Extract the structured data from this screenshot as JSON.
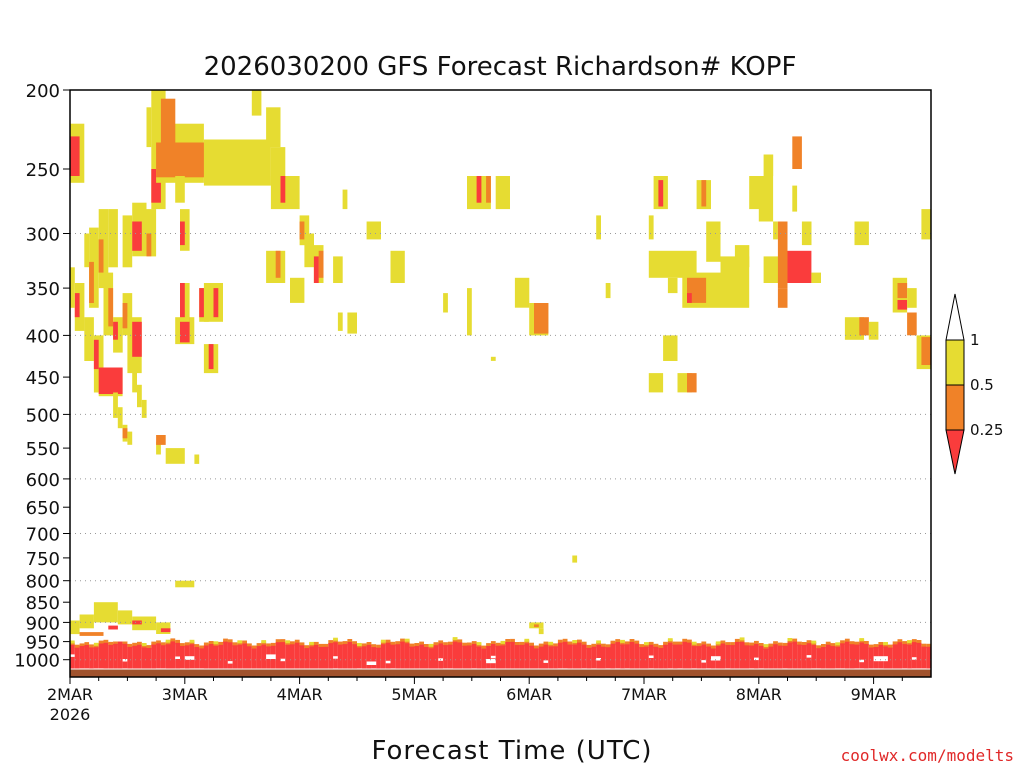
{
  "chart_data": {
    "type": "heatmap",
    "title": "2026030200 GFS Forecast Richardson# KOPF",
    "xlabel": "Forecast Time (UTC)",
    "ylabel": "",
    "credit": "coolwx.com/modelts",
    "x_unit": "hours since 2026-03-02 00Z",
    "xlim": [
      0,
      180
    ],
    "x_ticks": [
      {
        "hour": 0,
        "label": "2MAR",
        "sublabel": "2026"
      },
      {
        "hour": 24,
        "label": "3MAR"
      },
      {
        "hour": 48,
        "label": "4MAR"
      },
      {
        "hour": 72,
        "label": "5MAR"
      },
      {
        "hour": 96,
        "label": "6MAR"
      },
      {
        "hour": 120,
        "label": "7MAR"
      },
      {
        "hour": 144,
        "label": "8MAR"
      },
      {
        "hour": 168,
        "label": "9MAR"
      }
    ],
    "y_unit": "hPa",
    "ylim": [
      1050,
      200
    ],
    "y_ticks": [
      "200",
      "250",
      "300",
      "350",
      "400",
      "450",
      "500",
      "550",
      "600",
      "650",
      "700",
      "750",
      "800",
      "850",
      "900",
      "950",
      "1000"
    ],
    "gridlines_hPa": [
      300,
      400,
      500,
      600,
      700,
      800,
      900,
      1000
    ],
    "legend": {
      "position": "right",
      "thresholds": [
        "1",
        "0.5",
        "0.25"
      ],
      "bins": [
        {
          "range": "> 1",
          "color": "#ffffff"
        },
        {
          "range": "0.5 - 1",
          "color": "#e6dc32"
        },
        {
          "range": "0.25 - 0.5",
          "color": "#f08228"
        },
        {
          "range": "< 0.25",
          "color": "#fa3c3c"
        }
      ]
    },
    "colors": {
      "yellow": "#e6dc32",
      "orange": "#f08228",
      "red": "#fa3c3c",
      "ground": "#a0522d"
    },
    "cells": [
      {
        "t0": 0,
        "t1": 3,
        "p0": 220,
        "p1": 260,
        "c": "y"
      },
      {
        "t0": 0,
        "t1": 2,
        "p0": 228,
        "p1": 255,
        "c": "r"
      },
      {
        "t0": 3,
        "t1": 4,
        "p0": 300,
        "p1": 330,
        "c": "y"
      },
      {
        "t0": 4,
        "t1": 6,
        "p0": 295,
        "p1": 370,
        "c": "y"
      },
      {
        "t0": 4,
        "t1": 5,
        "p0": 325,
        "p1": 365,
        "c": "o"
      },
      {
        "t0": 6,
        "t1": 8,
        "p0": 280,
        "p1": 350,
        "c": "y"
      },
      {
        "t0": 6,
        "t1": 7,
        "p0": 305,
        "p1": 335,
        "c": "o"
      },
      {
        "t0": 1,
        "t1": 3,
        "p0": 345,
        "p1": 395,
        "c": "y"
      },
      {
        "t0": 1,
        "t1": 2,
        "p0": 355,
        "p1": 380,
        "c": "r"
      },
      {
        "t0": 0,
        "t1": 1,
        "p0": 330,
        "p1": 370,
        "c": "y"
      },
      {
        "t0": 3,
        "t1": 5,
        "p0": 380,
        "p1": 430,
        "c": "y"
      },
      {
        "t0": 5,
        "t1": 7,
        "p0": 400,
        "p1": 470,
        "c": "y"
      },
      {
        "t0": 5,
        "t1": 6,
        "p0": 405,
        "p1": 440,
        "c": "r"
      },
      {
        "t0": 6,
        "t1": 11,
        "p0": 438,
        "p1": 475,
        "c": "y"
      },
      {
        "t0": 6,
        "t1": 11,
        "p0": 438,
        "p1": 472,
        "c": "r"
      },
      {
        "t0": 8,
        "t1": 10,
        "p0": 280,
        "p1": 330,
        "c": "y"
      },
      {
        "t0": 7,
        "t1": 9,
        "p0": 335,
        "p1": 400,
        "c": "y"
      },
      {
        "t0": 8,
        "t1": 9,
        "p0": 350,
        "p1": 390,
        "c": "o"
      },
      {
        "t0": 9,
        "t1": 11,
        "p0": 380,
        "p1": 420,
        "c": "y"
      },
      {
        "t0": 9,
        "t1": 10,
        "p0": 385,
        "p1": 405,
        "c": "r"
      },
      {
        "t0": 11,
        "t1": 13,
        "p0": 285,
        "p1": 330,
        "c": "y"
      },
      {
        "t0": 11,
        "t1": 13,
        "p0": 355,
        "p1": 400,
        "c": "y"
      },
      {
        "t0": 11,
        "t1": 12,
        "p0": 365,
        "p1": 392,
        "c": "o"
      },
      {
        "t0": 12,
        "t1": 15,
        "p0": 380,
        "p1": 445,
        "c": "y"
      },
      {
        "t0": 13,
        "t1": 15,
        "p0": 385,
        "p1": 425,
        "c": "r"
      },
      {
        "t0": 13,
        "t1": 14,
        "p0": 440,
        "p1": 470,
        "c": "y"
      },
      {
        "t0": 14,
        "t1": 15,
        "p0": 460,
        "p1": 490,
        "c": "y"
      },
      {
        "t0": 9,
        "t1": 10,
        "p0": 470,
        "p1": 505,
        "c": "y"
      },
      {
        "t0": 10,
        "t1": 11,
        "p0": 490,
        "p1": 520,
        "c": "y"
      },
      {
        "t0": 11,
        "t1": 12,
        "p0": 515,
        "p1": 540,
        "c": "y"
      },
      {
        "t0": 11,
        "t1": 12,
        "p0": 520,
        "p1": 535,
        "c": "o"
      },
      {
        "t0": 12,
        "t1": 13,
        "p0": 525,
        "p1": 545,
        "c": "y"
      },
      {
        "t0": 15,
        "t1": 16,
        "p0": 480,
        "p1": 505,
        "c": "y"
      },
      {
        "t0": 13,
        "t1": 16,
        "p0": 275,
        "p1": 320,
        "c": "y"
      },
      {
        "t0": 13,
        "t1": 15,
        "p0": 290,
        "p1": 315,
        "c": "r"
      },
      {
        "t0": 16,
        "t1": 18,
        "p0": 280,
        "p1": 320,
        "c": "y"
      },
      {
        "t0": 16,
        "t1": 17,
        "p0": 300,
        "p1": 320,
        "c": "o"
      },
      {
        "t0": 16,
        "t1": 17,
        "p0": 210,
        "p1": 235,
        "c": "y"
      },
      {
        "t0": 17,
        "t1": 20,
        "p0": 200,
        "p1": 280,
        "c": "y"
      },
      {
        "t0": 17,
        "t1": 19,
        "p0": 250,
        "p1": 275,
        "c": "r"
      },
      {
        "t0": 18,
        "t1": 28,
        "p0": 220,
        "p1": 260,
        "c": "y"
      },
      {
        "t0": 19,
        "t1": 22,
        "p0": 205,
        "p1": 240,
        "c": "o"
      },
      {
        "t0": 18,
        "t1": 29,
        "p0": 232,
        "p1": 256,
        "c": "o"
      },
      {
        "t0": 22,
        "t1": 24,
        "p0": 255,
        "p1": 275,
        "c": "y"
      },
      {
        "t0": 23,
        "t1": 25,
        "p0": 280,
        "p1": 315,
        "c": "y"
      },
      {
        "t0": 23,
        "t1": 24,
        "p0": 290,
        "p1": 310,
        "c": "r"
      },
      {
        "t0": 18,
        "t1": 19,
        "p0": 540,
        "p1": 560,
        "c": "y"
      },
      {
        "t0": 18,
        "t1": 20,
        "p0": 530,
        "p1": 545,
        "c": "o"
      },
      {
        "t0": 20,
        "t1": 24,
        "p0": 550,
        "p1": 575,
        "c": "y"
      },
      {
        "t0": 26,
        "t1": 27,
        "p0": 560,
        "p1": 575,
        "c": "y"
      },
      {
        "t0": 22,
        "t1": 26,
        "p0": 380,
        "p1": 410,
        "c": "y"
      },
      {
        "t0": 23,
        "t1": 25,
        "p0": 380,
        "p1": 408,
        "c": "r"
      },
      {
        "t0": 23,
        "t1": 25,
        "p0": 345,
        "p1": 385,
        "c": "y"
      },
      {
        "t0": 23,
        "t1": 24,
        "p0": 345,
        "p1": 380,
        "c": "r"
      },
      {
        "t0": 27,
        "t1": 29,
        "p0": 350,
        "p1": 385,
        "c": "y"
      },
      {
        "t0": 27,
        "t1": 28,
        "p0": 350,
        "p1": 380,
        "c": "r"
      },
      {
        "t0": 28,
        "t1": 32,
        "p0": 345,
        "p1": 385,
        "c": "y"
      },
      {
        "t0": 30,
        "t1": 31,
        "p0": 350,
        "p1": 380,
        "c": "r"
      },
      {
        "t0": 28,
        "t1": 31,
        "p0": 410,
        "p1": 445,
        "c": "y"
      },
      {
        "t0": 29,
        "t1": 30,
        "p0": 410,
        "p1": 440,
        "c": "r"
      },
      {
        "t0": 28,
        "t1": 42,
        "p0": 230,
        "p1": 262,
        "c": "y"
      },
      {
        "t0": 41,
        "t1": 44,
        "p0": 210,
        "p1": 235,
        "c": "y"
      },
      {
        "t0": 38,
        "t1": 40,
        "p0": 200,
        "p1": 215,
        "c": "y"
      },
      {
        "t0": 42,
        "t1": 45,
        "p0": 235,
        "p1": 262,
        "c": "y"
      },
      {
        "t0": 42,
        "t1": 48,
        "p0": 255,
        "p1": 280,
        "c": "y"
      },
      {
        "t0": 44,
        "t1": 45,
        "p0": 255,
        "p1": 275,
        "c": "r"
      },
      {
        "t0": 48,
        "t1": 50,
        "p0": 285,
        "p1": 310,
        "c": "y"
      },
      {
        "t0": 48,
        "t1": 49,
        "p0": 290,
        "p1": 305,
        "c": "o"
      },
      {
        "t0": 41,
        "t1": 45,
        "p0": 315,
        "p1": 345,
        "c": "y"
      },
      {
        "t0": 43,
        "t1": 44,
        "p0": 315,
        "p1": 340,
        "c": "o"
      },
      {
        "t0": 46,
        "t1": 49,
        "p0": 340,
        "p1": 365,
        "c": "y"
      },
      {
        "t0": 49,
        "t1": 51,
        "p0": 300,
        "p1": 330,
        "c": "y"
      },
      {
        "t0": 51,
        "t1": 53,
        "p0": 310,
        "p1": 345,
        "c": "y"
      },
      {
        "t0": 52,
        "t1": 53,
        "p0": 315,
        "p1": 340,
        "c": "o"
      },
      {
        "t0": 51,
        "t1": 52,
        "p0": 320,
        "p1": 345,
        "c": "r"
      },
      {
        "t0": 55,
        "t1": 57,
        "p0": 320,
        "p1": 345,
        "c": "y"
      },
      {
        "t0": 57,
        "t1": 58,
        "p0": 265,
        "p1": 280,
        "c": "y"
      },
      {
        "t0": 56,
        "t1": 57,
        "p0": 375,
        "p1": 395,
        "c": "y"
      },
      {
        "t0": 58,
        "t1": 60,
        "p0": 375,
        "p1": 398,
        "c": "y"
      },
      {
        "t0": 62,
        "t1": 65,
        "p0": 290,
        "p1": 305,
        "c": "y"
      },
      {
        "t0": 67,
        "t1": 70,
        "p0": 315,
        "p1": 345,
        "c": "y"
      },
      {
        "t0": 78,
        "t1": 79,
        "p0": 355,
        "p1": 375,
        "c": "y"
      },
      {
        "t0": 83,
        "t1": 84,
        "p0": 350,
        "p1": 400,
        "c": "y"
      },
      {
        "t0": 83,
        "t1": 88,
        "p0": 255,
        "p1": 280,
        "c": "y"
      },
      {
        "t0": 85,
        "t1": 86,
        "p0": 255,
        "p1": 275,
        "c": "r"
      },
      {
        "t0": 87,
        "t1": 88,
        "p0": 255,
        "p1": 275,
        "c": "o"
      },
      {
        "t0": 89,
        "t1": 92,
        "p0": 255,
        "p1": 280,
        "c": "y"
      },
      {
        "t0": 93,
        "t1": 96,
        "p0": 340,
        "p1": 370,
        "c": "y"
      },
      {
        "t0": 96,
        "t1": 100,
        "p0": 365,
        "p1": 400,
        "c": "y"
      },
      {
        "t0": 97,
        "t1": 100,
        "p0": 365,
        "p1": 398,
        "c": "o"
      },
      {
        "t0": 88,
        "t1": 89,
        "p0": 425,
        "p1": 430,
        "c": "y"
      },
      {
        "t0": 110,
        "t1": 111,
        "p0": 285,
        "p1": 305,
        "c": "y"
      },
      {
        "t0": 112,
        "t1": 113,
        "p0": 345,
        "p1": 360,
        "c": "y"
      },
      {
        "t0": 121,
        "t1": 122,
        "p0": 285,
        "p1": 305,
        "c": "y"
      },
      {
        "t0": 122,
        "t1": 125,
        "p0": 255,
        "p1": 280,
        "c": "y"
      },
      {
        "t0": 123,
        "t1": 124,
        "p0": 258,
        "p1": 278,
        "c": "r"
      },
      {
        "t0": 121,
        "t1": 131,
        "p0": 315,
        "p1": 340,
        "c": "y"
      },
      {
        "t0": 125,
        "t1": 127,
        "p0": 340,
        "p1": 355,
        "c": "y"
      },
      {
        "t0": 128,
        "t1": 136,
        "p0": 335,
        "p1": 370,
        "c": "y"
      },
      {
        "t0": 129,
        "t1": 133,
        "p0": 340,
        "p1": 365,
        "c": "o"
      },
      {
        "t0": 129,
        "t1": 130,
        "p0": 355,
        "p1": 365,
        "c": "r"
      },
      {
        "t0": 136,
        "t1": 142,
        "p0": 320,
        "p1": 370,
        "c": "y"
      },
      {
        "t0": 139,
        "t1": 142,
        "p0": 310,
        "p1": 330,
        "c": "y"
      },
      {
        "t0": 131,
        "t1": 134,
        "p0": 258,
        "p1": 280,
        "c": "y"
      },
      {
        "t0": 132,
        "t1": 133,
        "p0": 258,
        "p1": 278,
        "c": "o"
      },
      {
        "t0": 133,
        "t1": 136,
        "p0": 290,
        "p1": 325,
        "c": "y"
      },
      {
        "t0": 142,
        "t1": 145,
        "p0": 255,
        "p1": 280,
        "c": "y"
      },
      {
        "t0": 144,
        "t1": 147,
        "p0": 255,
        "p1": 290,
        "c": "y"
      },
      {
        "t0": 145,
        "t1": 147,
        "p0": 240,
        "p1": 255,
        "c": "y"
      },
      {
        "t0": 147,
        "t1": 148,
        "p0": 290,
        "p1": 305,
        "c": "y"
      },
      {
        "t0": 145,
        "t1": 151,
        "p0": 320,
        "p1": 345,
        "c": "y"
      },
      {
        "t0": 148,
        "t1": 150,
        "p0": 290,
        "p1": 350,
        "c": "o"
      },
      {
        "t0": 148,
        "t1": 150,
        "p0": 350,
        "p1": 370,
        "c": "o"
      },
      {
        "t0": 150,
        "t1": 155,
        "p0": 315,
        "p1": 345,
        "c": "r"
      },
      {
        "t0": 151,
        "t1": 152,
        "p0": 262,
        "p1": 282,
        "c": "y"
      },
      {
        "t0": 151,
        "t1": 153,
        "p0": 228,
        "p1": 250,
        "c": "o"
      },
      {
        "t0": 153,
        "t1": 155,
        "p0": 290,
        "p1": 310,
        "c": "y"
      },
      {
        "t0": 155,
        "t1": 157,
        "p0": 335,
        "p1": 345,
        "c": "y"
      },
      {
        "t0": 164,
        "t1": 167,
        "p0": 290,
        "p1": 310,
        "c": "y"
      },
      {
        "t0": 162,
        "t1": 166,
        "p0": 380,
        "p1": 405,
        "c": "y"
      },
      {
        "t0": 165,
        "t1": 167,
        "p0": 380,
        "p1": 400,
        "c": "o"
      },
      {
        "t0": 167,
        "t1": 169,
        "p0": 385,
        "p1": 405,
        "c": "y"
      },
      {
        "t0": 172,
        "t1": 175,
        "p0": 340,
        "p1": 375,
        "c": "y"
      },
      {
        "t0": 173,
        "t1": 175,
        "p0": 345,
        "p1": 360,
        "c": "o"
      },
      {
        "t0": 173,
        "t1": 175,
        "p0": 362,
        "p1": 372,
        "c": "r"
      },
      {
        "t0": 175,
        "t1": 177,
        "p0": 350,
        "p1": 370,
        "c": "y"
      },
      {
        "t0": 175,
        "t1": 177,
        "p0": 375,
        "p1": 400,
        "c": "o"
      },
      {
        "t0": 178,
        "t1": 180,
        "p0": 280,
        "p1": 305,
        "c": "y"
      },
      {
        "t0": 177,
        "t1": 180,
        "p0": 400,
        "p1": 440,
        "c": "y"
      },
      {
        "t0": 178,
        "t1": 180,
        "p0": 402,
        "p1": 435,
        "c": "o"
      },
      {
        "t0": 124,
        "t1": 127,
        "p0": 400,
        "p1": 430,
        "c": "y"
      },
      {
        "t0": 121,
        "t1": 124,
        "p0": 445,
        "p1": 470,
        "c": "y"
      },
      {
        "t0": 127,
        "t1": 130,
        "p0": 445,
        "p1": 470,
        "c": "y"
      },
      {
        "t0": 129,
        "t1": 131,
        "p0": 445,
        "p1": 470,
        "c": "o"
      },
      {
        "t0": 105,
        "t1": 106,
        "p0": 745,
        "p1": 760,
        "c": "y"
      },
      {
        "t0": 22,
        "t1": 26,
        "p0": 800,
        "p1": 815,
        "c": "y"
      },
      {
        "t0": 0,
        "t1": 2,
        "p0": 895,
        "p1": 930,
        "c": "y"
      },
      {
        "t0": 2,
        "t1": 5,
        "p0": 880,
        "p1": 915,
        "c": "y"
      },
      {
        "t0": 5,
        "t1": 10,
        "p0": 850,
        "p1": 900,
        "c": "y"
      },
      {
        "t0": 10,
        "t1": 13,
        "p0": 870,
        "p1": 905,
        "c": "y"
      },
      {
        "t0": 13,
        "t1": 18,
        "p0": 885,
        "p1": 920,
        "c": "y"
      },
      {
        "t0": 18,
        "t1": 21,
        "p0": 900,
        "p1": 930,
        "c": "y"
      },
      {
        "t0": 2,
        "t1": 7,
        "p0": 925,
        "p1": 935,
        "c": "o"
      },
      {
        "t0": 8,
        "t1": 10,
        "p0": 908,
        "p1": 918,
        "c": "r"
      },
      {
        "t0": 13,
        "t1": 15,
        "p0": 895,
        "p1": 905,
        "c": "r"
      },
      {
        "t0": 19,
        "t1": 21,
        "p0": 915,
        "p1": 925,
        "c": "r"
      },
      {
        "t0": 96,
        "t1": 99,
        "p0": 900,
        "p1": 915,
        "c": "y"
      },
      {
        "t0": 98,
        "t1": 99,
        "p0": 915,
        "p1": 930,
        "c": "y"
      },
      {
        "t0": 97,
        "t1": 98,
        "p0": 905,
        "p1": 912,
        "c": "o"
      }
    ],
    "surface_red": {
      "p_top": 970,
      "p_bottom": 1025
    },
    "surface_orange_top": 955,
    "white_holes": [
      {
        "t0": 1,
        "t1": 3,
        "p0": 940,
        "p1": 955
      },
      {
        "t0": 9,
        "t1": 12,
        "p0": 935,
        "p1": 950
      },
      {
        "t0": 24,
        "t1": 26,
        "p0": 990,
        "p1": 1000
      },
      {
        "t0": 41,
        "t1": 43,
        "p0": 985,
        "p1": 998
      },
      {
        "t0": 62,
        "t1": 64,
        "p0": 1005,
        "p1": 1015
      },
      {
        "t0": 87,
        "t1": 89,
        "p0": 998,
        "p1": 1010
      },
      {
        "t0": 134,
        "t1": 136,
        "p0": 990,
        "p1": 1002
      },
      {
        "t0": 168,
        "t1": 171,
        "p0": 990,
        "p1": 1004
      }
    ],
    "ground": {
      "p_top": 1028,
      "p_bottom": 1050
    }
  }
}
